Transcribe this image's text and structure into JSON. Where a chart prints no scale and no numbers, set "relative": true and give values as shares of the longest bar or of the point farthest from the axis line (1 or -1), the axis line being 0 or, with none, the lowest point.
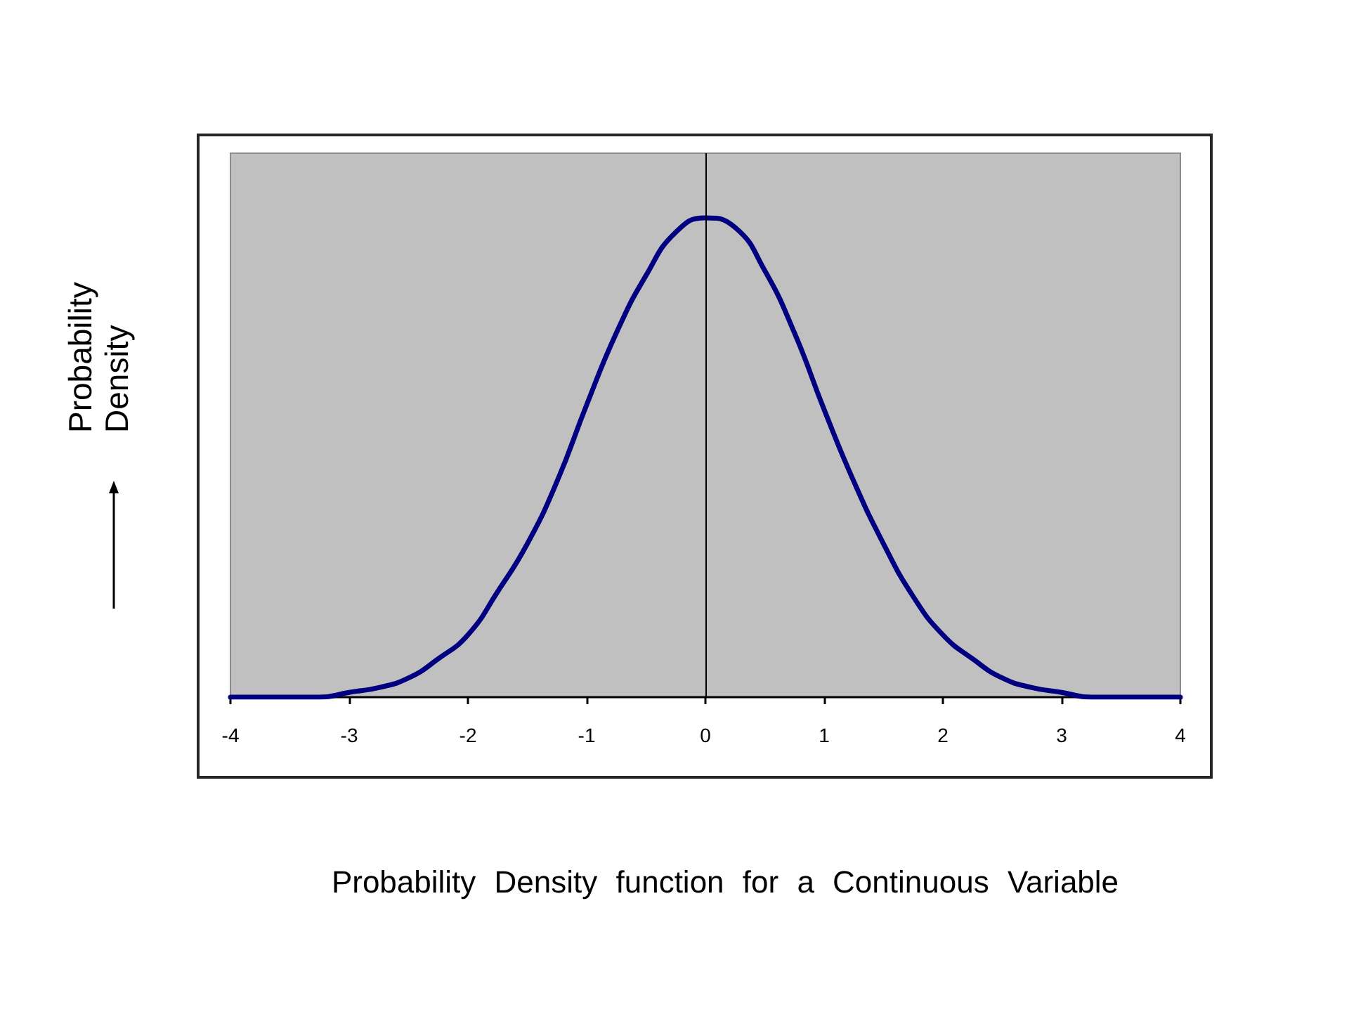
{
  "chart_data": {
    "type": "line",
    "xlabel": "Probability Density function for a Continuous Variable",
    "ylabel": "Probability Density",
    "x": [
      -4,
      -3.75,
      -3.5,
      -3.25,
      -3,
      -2.75,
      -2.5,
      -2.25,
      -2,
      -1.75,
      -1.5,
      -1.25,
      -1,
      -0.75,
      -0.5,
      -0.25,
      0,
      0.25,
      0.5,
      0.75,
      1,
      1.25,
      1.5,
      1.75,
      2,
      2.25,
      2.5,
      2.75,
      3,
      3.25,
      3.5,
      3.75,
      4
    ],
    "values": [
      0,
      0,
      0,
      0,
      0.01,
      0.02,
      0.04,
      0.08,
      0.13,
      0.22,
      0.32,
      0.45,
      0.61,
      0.76,
      0.88,
      0.97,
      1,
      0.98,
      0.89,
      0.76,
      0.6,
      0.45,
      0.32,
      0.21,
      0.13,
      0.08,
      0.04,
      0.02,
      0.01,
      0,
      0,
      0,
      0
    ],
    "color": "#000080",
    "relative": true,
    "xlim": [
      -4,
      4
    ],
    "xticks": [
      -4,
      -3,
      -2,
      -1,
      0,
      1,
      2,
      3,
      4
    ],
    "marker": "none",
    "ref_lines": [
      {
        "axis": "x",
        "value": 0,
        "color": "#000000"
      }
    ]
  }
}
